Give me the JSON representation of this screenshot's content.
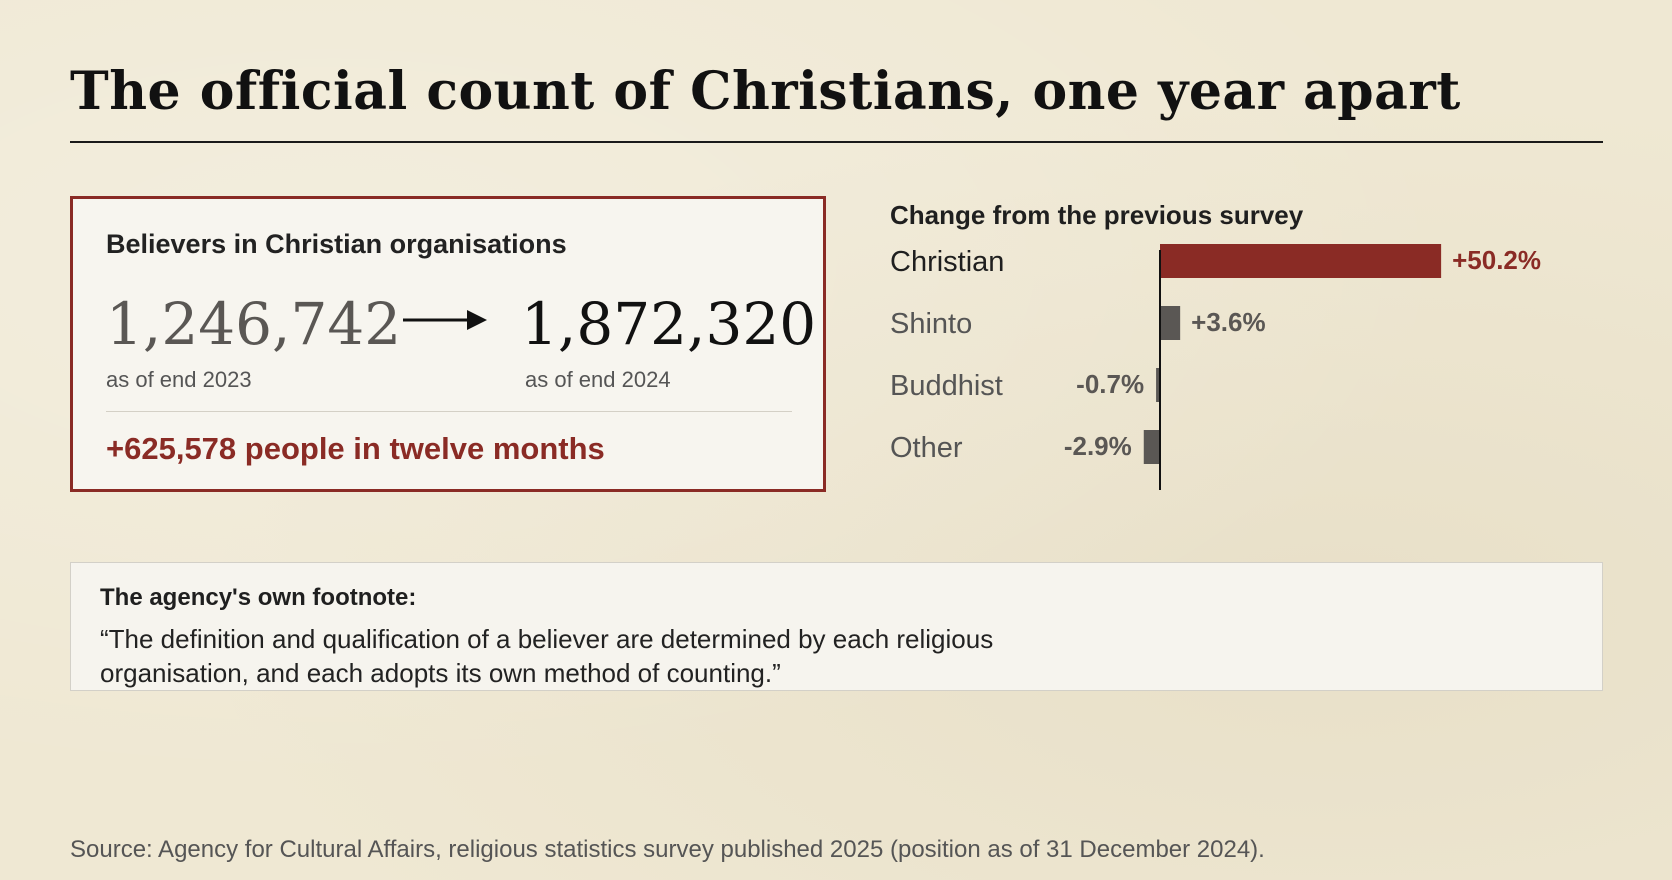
{
  "title": "The official count of Christians, one year apart",
  "card": {
    "title": "Believers in Christian organisations",
    "from_value": "1,246,742",
    "from_label": "as of end 2023",
    "to_value": "1,872,320",
    "to_label": "as of end 2024",
    "change": "+625,578 people in twelve months"
  },
  "chart_data": {
    "type": "bar",
    "orientation": "horizontal",
    "title": "Change from the previous survey",
    "categories": [
      "Christian",
      "Shinto",
      "Buddhist",
      "Other"
    ],
    "values": [
      50.2,
      3.6,
      -0.7,
      -2.9
    ],
    "value_labels": [
      "+50.2%",
      "+3.6%",
      "-0.7%",
      "-2.9%"
    ],
    "unit": "%",
    "grid": false,
    "colors": {
      "highlight": "#8a2b25",
      "other": "#5a5754"
    }
  },
  "footnote": {
    "title": "The agency's own footnote:",
    "text": "“The definition and qualification of a believer are determined by each religious organisation, and each adopts its own method of counting.”"
  },
  "source": "Source: Agency for Cultural Affairs, religious statistics survey published 2025 (position as of 31 December 2024)."
}
